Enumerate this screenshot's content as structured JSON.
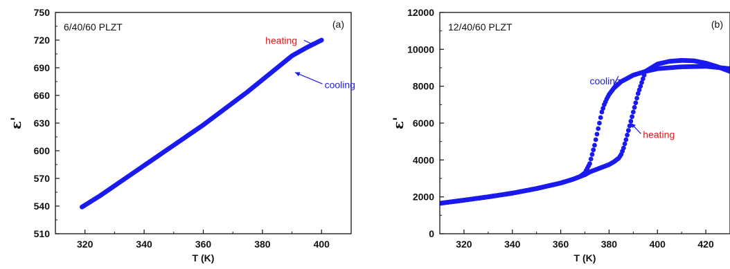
{
  "chart_data": [
    {
      "type": "scatter",
      "panel_label": "(a)",
      "sample_label": "6/40/60 PLZT",
      "xlabel": "T (K)",
      "ylabel": "ε'",
      "xlim": [
        310,
        410
      ],
      "ylim": [
        510,
        750
      ],
      "xticks": [
        320,
        340,
        360,
        380,
        400
      ],
      "yticks": [
        510,
        540,
        570,
        600,
        630,
        660,
        690,
        720,
        750
      ],
      "grid": false,
      "marker_color": "#1a1aee",
      "annotations": [
        {
          "text": "heating",
          "color": "#ee1111",
          "x": 381,
          "y": 716,
          "arrow_to": [
            398,
            714
          ]
        },
        {
          "text": "cooling",
          "color": "#1a1aee",
          "x": 401,
          "y": 668,
          "arrow_to": [
            391,
            685
          ]
        }
      ],
      "series": [
        {
          "x": [
            319,
            320,
            325,
            330,
            335,
            340,
            345,
            350,
            355,
            360,
            365,
            370,
            375,
            380,
            385,
            390,
            395,
            400
          ],
          "y": [
            539,
            541,
            551,
            562,
            573,
            584,
            595,
            606,
            617,
            628,
            640,
            652,
            664,
            677,
            690,
            703,
            712,
            720
          ]
        }
      ]
    },
    {
      "type": "scatter",
      "panel_label": "(b)",
      "sample_label": "12/40/60 PLZT",
      "xlabel": "T (K)",
      "ylabel": "ε'",
      "xlim": [
        310,
        430
      ],
      "ylim": [
        0,
        12000
      ],
      "xticks": [
        320,
        340,
        360,
        380,
        400,
        420
      ],
      "yticks": [
        0,
        2000,
        4000,
        6000,
        8000,
        10000,
        12000
      ],
      "grid": false,
      "marker_color": "#1a1aee",
      "annotations": [
        {
          "text": "cooling",
          "color": "#1a1aee",
          "x": 372,
          "y": 8100,
          "arrow_to": [
            379,
            7300
          ]
        },
        {
          "text": "heating",
          "color": "#ee1111",
          "x": 394,
          "y": 5200,
          "arrow_to": [
            389,
            6000
          ]
        }
      ],
      "series": [
        {
          "x": [
            310,
            320,
            330,
            340,
            350,
            360,
            365,
            368,
            370,
            372,
            374,
            376,
            377,
            378,
            379,
            380,
            382,
            385,
            390,
            395,
            400,
            410,
            420,
            430
          ],
          "y": [
            1650,
            1820,
            2000,
            2200,
            2450,
            2750,
            2950,
            3100,
            3300,
            3800,
            4800,
            6000,
            6600,
            7000,
            7300,
            7550,
            7900,
            8250,
            8600,
            8800,
            8950,
            9050,
            9080,
            8950
          ]
        },
        {
          "x": [
            310,
            320,
            330,
            340,
            350,
            360,
            365,
            370,
            372,
            375,
            378,
            380,
            382,
            384,
            385,
            386,
            387,
            388,
            389,
            390,
            391,
            392,
            393,
            394,
            395,
            400,
            405,
            410,
            415,
            420,
            425,
            430
          ],
          "y": [
            1650,
            1820,
            2000,
            2200,
            2450,
            2750,
            2950,
            3200,
            3350,
            3500,
            3650,
            3750,
            3900,
            4100,
            4300,
            4650,
            5100,
            5600,
            6100,
            6600,
            7100,
            7600,
            8000,
            8400,
            8800,
            9200,
            9350,
            9400,
            9380,
            9250,
            9050,
            8800
          ]
        }
      ]
    }
  ]
}
